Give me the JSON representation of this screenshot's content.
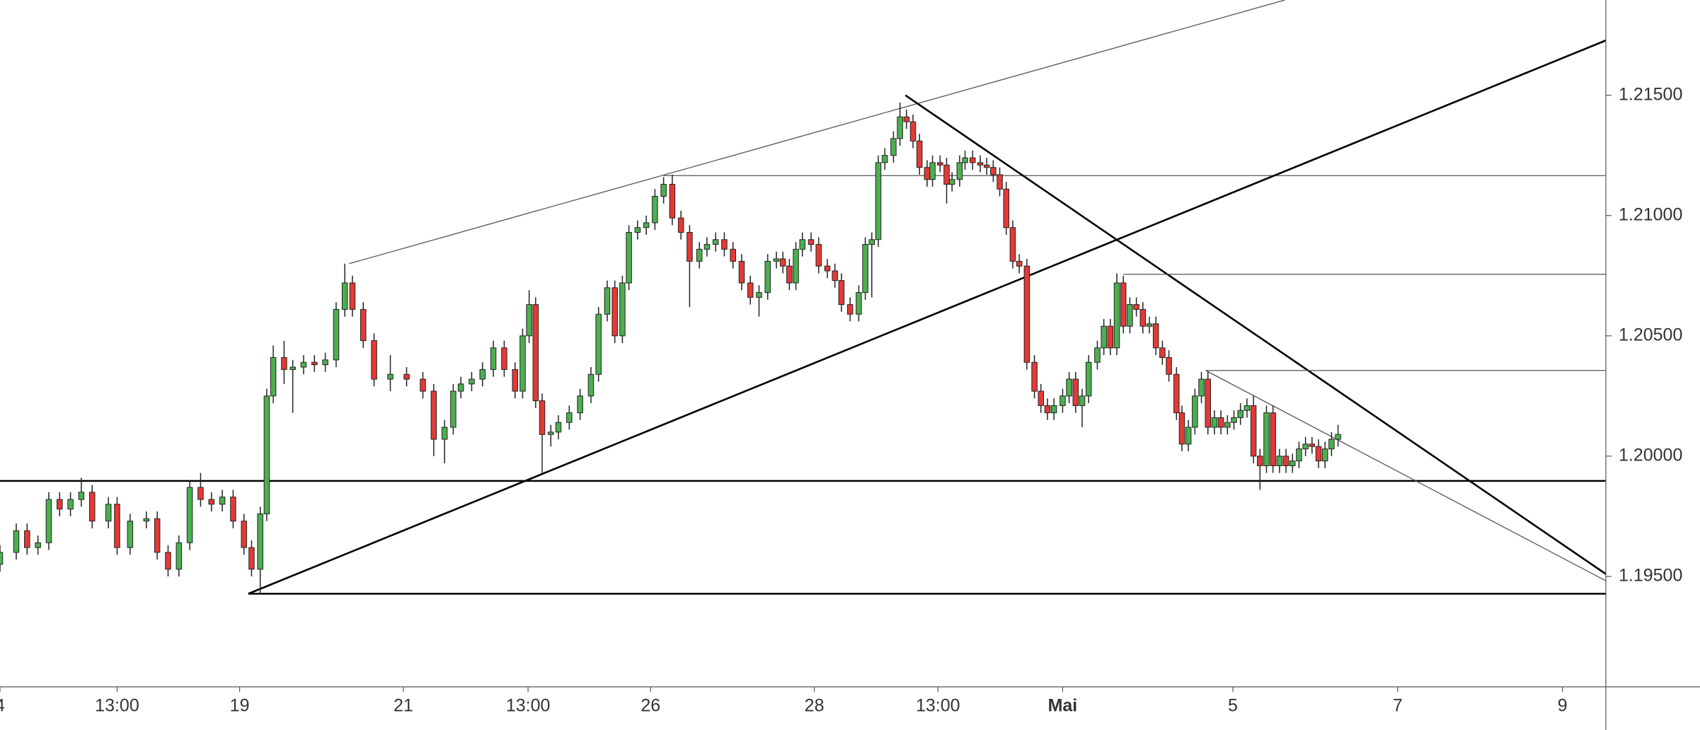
{
  "chart_data": {
    "type": "candlestick",
    "up_color": "#4caf50",
    "down_color": "#e53935",
    "outline_color": "#222222",
    "xlim": [
      0,
      1481
    ],
    "ylim": [
      1.19041,
      1.21896
    ],
    "xticks": [
      {
        "value": 0,
        "label": "4"
      },
      {
        "value": 108,
        "label": "13:00"
      },
      {
        "value": 221,
        "label": "19"
      },
      {
        "value": 372,
        "label": "21"
      },
      {
        "value": 487,
        "label": "13:00"
      },
      {
        "value": 600,
        "label": "26"
      },
      {
        "value": 751,
        "label": "28"
      },
      {
        "value": 865,
        "label": "13:00"
      },
      {
        "value": 980,
        "label": "Mai",
        "bold": true
      },
      {
        "value": 1137,
        "label": "5"
      },
      {
        "value": 1289,
        "label": "7"
      },
      {
        "value": 1441,
        "label": "9"
      }
    ],
    "yticks": [
      {
        "value": 1.195,
        "label": "1.19500"
      },
      {
        "value": 1.2,
        "label": "1.20000"
      },
      {
        "value": 1.205,
        "label": "1.20500"
      },
      {
        "value": 1.21,
        "label": "1.21000"
      },
      {
        "value": 1.215,
        "label": "1.21500"
      }
    ],
    "x": [
      0,
      15,
      25,
      35,
      45,
      55,
      65,
      75,
      85,
      100,
      108,
      120,
      135,
      145,
      155,
      165,
      175,
      185,
      195,
      205,
      215,
      225,
      232,
      240,
      246,
      252,
      262,
      270,
      280,
      290,
      300,
      310,
      318,
      325,
      335,
      345,
      360,
      375,
      390,
      400,
      410,
      418,
      425,
      435,
      445,
      455,
      465,
      475,
      482,
      488,
      494,
      500,
      508,
      515,
      525,
      535,
      545,
      552,
      560,
      567,
      574,
      580,
      588,
      596,
      604,
      612,
      620,
      628,
      636,
      645,
      652,
      660,
      668,
      676,
      684,
      692,
      700,
      708,
      716,
      722,
      728,
      734,
      740,
      748,
      755,
      763,
      770,
      776,
      784,
      792,
      798,
      804,
      810,
      816,
      824,
      830,
      836,
      842,
      848,
      855,
      860,
      867,
      873,
      878,
      885,
      890,
      897,
      904,
      910,
      916,
      922,
      928,
      934,
      940,
      947,
      954,
      960,
      966,
      972,
      980,
      986,
      992,
      998,
      1004,
      1012,
      1018,
      1024,
      1030,
      1036,
      1042,
      1048,
      1054,
      1060,
      1066,
      1072,
      1078,
      1085,
      1090,
      1096,
      1102,
      1108,
      1114,
      1120,
      1126,
      1132,
      1138,
      1144,
      1150,
      1156,
      1162,
      1168,
      1174,
      1180,
      1186,
      1192,
      1198,
      1204,
      1210,
      1216,
      1222,
      1228,
      1234
    ],
    "open": [
      1.1955,
      1.196,
      1.1969,
      1.1962,
      1.1964,
      1.1982,
      1.1978,
      1.1982,
      1.1985,
      1.1973,
      1.198,
      1.1962,
      1.1973,
      1.1974,
      1.196,
      1.1953,
      1.1964,
      1.1987,
      1.1982,
      1.198,
      1.1983,
      1.1973,
      1.1962,
      1.1953,
      1.1976,
      1.2025,
      1.2041,
      1.2036,
      1.2037,
      1.2039,
      1.2038,
      1.204,
      1.2061,
      1.2072,
      1.2061,
      1.2048,
      1.2032,
      1.2034,
      1.2032,
      1.2027,
      1.2007,
      1.2012,
      1.2027,
      1.203,
      1.2032,
      1.2036,
      1.2045,
      1.2036,
      1.2027,
      1.205,
      1.2063,
      1.2023,
      1.2009,
      1.201,
      1.2014,
      1.2018,
      1.2025,
      1.2034,
      1.2059,
      1.207,
      1.205,
      1.2072,
      1.2093,
      1.2095,
      1.2097,
      1.2108,
      1.2113,
      1.2099,
      1.2093,
      1.2081,
      1.2086,
      1.2088,
      1.209,
      1.2086,
      1.2081,
      1.2072,
      1.2066,
      1.2068,
      1.2081,
      1.2082,
      1.2079,
      1.2072,
      1.2086,
      1.209,
      1.2088,
      1.2079,
      1.2077,
      1.2073,
      1.2063,
      1.2059,
      1.2068,
      1.2088,
      1.209,
      1.2122,
      1.2125,
      1.2132,
      1.2141,
      1.2139,
      1.2131,
      1.212,
      1.2115,
      1.2122,
      1.2121,
      1.2113,
      1.2115,
      1.2122,
      1.2124,
      1.2122,
      1.2121,
      1.212,
      1.2117,
      1.2111,
      1.2095,
      1.2081,
      1.2079,
      1.2039,
      1.2027,
      1.2021,
      1.2018,
      1.2021,
      1.2025,
      1.2032,
      1.2021,
      1.2025,
      1.2039,
      1.2045,
      1.2054,
      1.2045,
      1.2072,
      1.2054,
      1.2063,
      1.2061,
      1.2054,
      1.2055,
      1.2045,
      1.2041,
      1.2034,
      1.2018,
      1.2005,
      1.2012,
      1.2025,
      1.2032,
      1.2012,
      1.2016,
      1.2012,
      1.2014,
      1.2016,
      1.2019,
      1.2021,
      1.2,
      1.1996,
      1.2018,
      1.1996,
      1.2,
      1.1996,
      1.1998,
      1.2003,
      1.2005,
      1.2004,
      1.1998,
      1.2003,
      1.2007
    ],
    "high": [
      1.1963,
      1.1972,
      1.1972,
      1.1967,
      1.1985,
      1.1985,
      1.1985,
      1.1991,
      1.1988,
      1.1983,
      1.1983,
      1.1976,
      1.1977,
      1.1977,
      1.1963,
      1.1967,
      1.199,
      1.1993,
      1.1985,
      1.1986,
      1.1986,
      1.1976,
      1.1965,
      1.1979,
      1.2028,
      1.2046,
      1.2048,
      1.204,
      1.2042,
      1.2042,
      1.2043,
      1.2064,
      1.208,
      1.2075,
      1.2064,
      1.2051,
      1.2042,
      1.2037,
      1.2035,
      1.203,
      1.2015,
      1.203,
      1.2033,
      1.2035,
      1.2039,
      1.2048,
      1.2048,
      1.2039,
      1.2053,
      1.2069,
      1.2066,
      1.2026,
      1.2013,
      1.2017,
      1.2021,
      1.2028,
      1.2037,
      1.2062,
      1.2073,
      1.2073,
      1.2075,
      1.2096,
      1.2098,
      1.21,
      1.2111,
      1.2116,
      1.2117,
      1.2102,
      1.2096,
      1.2089,
      1.2091,
      1.2093,
      1.2093,
      1.2089,
      1.2084,
      1.2075,
      1.2071,
      1.2084,
      1.2085,
      1.2085,
      1.2082,
      1.2089,
      1.2093,
      1.2093,
      1.2091,
      1.2082,
      1.208,
      1.2076,
      1.2066,
      1.2071,
      1.2091,
      1.2093,
      1.2125,
      1.2128,
      1.2135,
      1.2147,
      1.2144,
      1.2142,
      1.2134,
      1.2123,
      1.2125,
      1.2125,
      1.2124,
      1.2118,
      1.2125,
      1.2127,
      1.2127,
      1.2125,
      1.2124,
      1.2123,
      1.212,
      1.2114,
      1.2098,
      1.2084,
      1.2082,
      1.2042,
      1.203,
      1.2024,
      1.2024,
      1.2028,
      1.2035,
      1.2035,
      1.2028,
      1.2042,
      1.2048,
      1.2057,
      1.2057,
      1.2076,
      1.2075,
      1.2066,
      1.2066,
      1.2064,
      1.2058,
      1.2058,
      1.2048,
      1.2044,
      1.2037,
      1.2021,
      1.2015,
      1.2028,
      1.2035,
      1.2035,
      1.2019,
      1.2019,
      1.2017,
      1.2019,
      1.2022,
      1.2024,
      1.2025,
      1.2003,
      1.2021,
      1.2021,
      1.2003,
      1.2003,
      1.2001,
      1.2006,
      1.2008,
      1.2008,
      1.2007,
      1.2006,
      1.201,
      1.2013
    ],
    "low": [
      1.1952,
      1.1957,
      1.1959,
      1.1959,
      1.1961,
      1.1975,
      1.1975,
      1.1979,
      1.197,
      1.197,
      1.1959,
      1.1959,
      1.197,
      1.1957,
      1.195,
      1.195,
      1.1961,
      1.1979,
      1.1977,
      1.1977,
      1.197,
      1.1959,
      1.195,
      1.1943,
      1.1973,
      1.2022,
      1.203,
      1.2018,
      1.2034,
      1.2035,
      1.2035,
      1.2037,
      1.2058,
      1.2058,
      1.2045,
      1.2029,
      1.2027,
      1.2029,
      1.2024,
      1.2,
      1.1997,
      1.2009,
      1.2024,
      1.2027,
      1.2029,
      1.2033,
      1.2033,
      1.2024,
      1.2024,
      1.2047,
      1.202,
      1.1993,
      1.2004,
      1.2007,
      1.2011,
      1.2015,
      1.2022,
      1.2031,
      1.2056,
      1.2047,
      1.2047,
      1.2069,
      1.209,
      1.2092,
      1.2094,
      1.2105,
      1.2096,
      1.209,
      1.2062,
      1.2078,
      1.2083,
      1.2085,
      1.2083,
      1.2078,
      1.2069,
      1.2063,
      1.2058,
      1.2065,
      1.2078,
      1.2076,
      1.2069,
      1.2069,
      1.2083,
      1.2085,
      1.2076,
      1.2074,
      1.207,
      1.206,
      1.2056,
      1.2056,
      1.2065,
      1.2066,
      1.2087,
      1.2119,
      1.2122,
      1.2129,
      1.2136,
      1.2128,
      1.2117,
      1.2112,
      1.2112,
      1.2118,
      1.2105,
      1.211,
      1.2112,
      1.2119,
      1.2119,
      1.2118,
      1.2117,
      1.2114,
      1.2108,
      1.2092,
      1.2078,
      1.2076,
      1.2036,
      1.2024,
      1.2018,
      1.2015,
      1.2015,
      1.2018,
      1.2022,
      1.2018,
      1.2012,
      1.2022,
      1.2036,
      1.2042,
      1.2042,
      1.2042,
      1.2051,
      1.2051,
      1.2058,
      1.2051,
      1.2051,
      1.2042,
      1.2038,
      1.2031,
      1.2015,
      1.2002,
      1.2002,
      1.2009,
      1.2022,
      1.2009,
      1.2009,
      1.2009,
      1.2009,
      1.2011,
      1.2013,
      1.2016,
      1.1997,
      1.1986,
      1.1993,
      1.1993,
      1.1993,
      1.1993,
      1.1993,
      1.1995,
      1.2,
      1.2001,
      1.1995,
      1.1995,
      1.2,
      1.2004
    ],
    "close": [
      1.196,
      1.1969,
      1.1962,
      1.1964,
      1.1982,
      1.1978,
      1.1982,
      1.1985,
      1.1973,
      1.198,
      1.1962,
      1.1973,
      1.1974,
      1.196,
      1.1953,
      1.1964,
      1.1987,
      1.1982,
      1.198,
      1.1983,
      1.1973,
      1.1962,
      1.1953,
      1.1976,
      1.2025,
      1.2041,
      1.2036,
      1.2037,
      1.2039,
      1.2038,
      1.204,
      1.2061,
      1.2072,
      1.2061,
      1.2048,
      1.2032,
      1.2034,
      1.2032,
      1.2027,
      1.2007,
      1.2012,
      1.2027,
      1.203,
      1.2032,
      1.2036,
      1.2045,
      1.2036,
      1.2027,
      1.205,
      1.2063,
      1.2023,
      1.2009,
      1.201,
      1.2014,
      1.2018,
      1.2025,
      1.2034,
      1.2059,
      1.207,
      1.205,
      1.2072,
      1.2093,
      1.2095,
      1.2097,
      1.2108,
      1.2113,
      1.2099,
      1.2093,
      1.2081,
      1.2086,
      1.2088,
      1.209,
      1.2086,
      1.2081,
      1.2072,
      1.2066,
      1.2068,
      1.2081,
      1.2082,
      1.2079,
      1.2072,
      1.2086,
      1.209,
      1.2088,
      1.2079,
      1.2077,
      1.2073,
      1.2063,
      1.2059,
      1.2068,
      1.2088,
      1.209,
      1.2122,
      1.2125,
      1.2132,
      1.2141,
      1.2139,
      1.2131,
      1.212,
      1.2115,
      1.2122,
      1.2121,
      1.2113,
      1.2115,
      1.2122,
      1.2124,
      1.2122,
      1.2121,
      1.212,
      1.2117,
      1.2111,
      1.2095,
      1.2081,
      1.2079,
      1.2039,
      1.2027,
      1.2021,
      1.2018,
      1.2021,
      1.2025,
      1.2032,
      1.2021,
      1.2025,
      1.2039,
      1.2045,
      1.2054,
      1.2045,
      1.2072,
      1.2054,
      1.2063,
      1.2061,
      1.2054,
      1.2055,
      1.2045,
      1.2041,
      1.2034,
      1.2018,
      1.2005,
      1.2012,
      1.2025,
      1.2032,
      1.2012,
      1.2016,
      1.2012,
      1.2014,
      1.2016,
      1.2019,
      1.2021,
      1.2,
      1.1996,
      1.2018,
      1.1996,
      1.2,
      1.1996,
      1.1998,
      1.2003,
      1.2005,
      1.2004,
      1.1998,
      1.2003,
      1.2007,
      1.2009
    ],
    "drawings": [
      {
        "x": [
          322,
          1185
        ],
        "y": [
          1.208,
          1.21896
        ],
        "style": "thin"
      },
      {
        "x": [
          612,
          1481
        ],
        "y": [
          1.21166,
          1.21166
        ],
        "style": "thin"
      },
      {
        "x": [
          229,
          1481
        ],
        "y": [
          1.19428,
          1.21728
        ],
        "style": "thick"
      },
      {
        "x": [
          835,
          1481
        ],
        "y": [
          1.215,
          1.1951
        ],
        "style": "thick"
      },
      {
        "x": [
          0,
          1481
        ],
        "y": [
          1.19897,
          1.19897
        ],
        "style": "thick"
      },
      {
        "x": [
          229,
          1481
        ],
        "y": [
          1.19428,
          1.19428
        ],
        "style": "thick"
      },
      {
        "x": [
          1036,
          1481
        ],
        "y": [
          1.20756,
          1.20756
        ],
        "style": "thin"
      },
      {
        "x": [
          1112,
          1481
        ],
        "y": [
          1.20356,
          1.20356
        ],
        "style": "thin"
      },
      {
        "x": [
          1112,
          1481
        ],
        "y": [
          1.20356,
          1.19482
        ],
        "style": "thin"
      }
    ]
  }
}
